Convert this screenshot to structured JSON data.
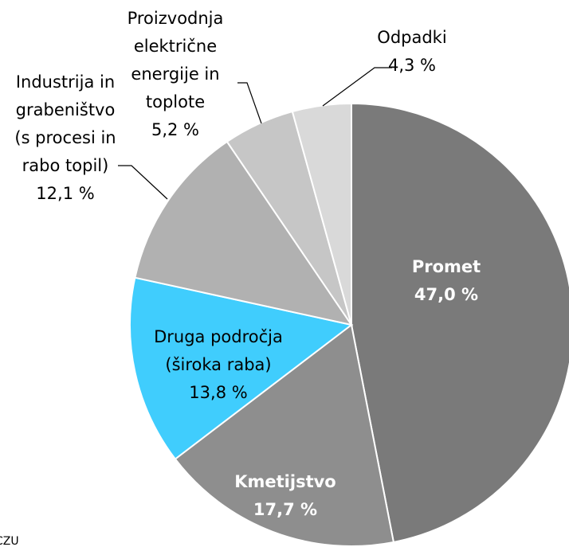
{
  "chart_data": {
    "type": "pie",
    "categories": [
      [
        "Promet"
      ],
      [
        "Kmetijstvo"
      ],
      [
        "Druga področja",
        "(široka raba)"
      ],
      [
        "Industrija in",
        "grabeništvo",
        "(s procesi in",
        "rabo topil)"
      ],
      [
        "Proizvodnja",
        "električne",
        "energije in",
        "toplote"
      ],
      [
        "Odpadki"
      ]
    ],
    "values": [
      47.0,
      17.7,
      13.8,
      12.1,
      5.2,
      4.3
    ],
    "value_labels": [
      "47,0 %",
      "17,7 %",
      "13,8 %",
      "12,1 %",
      "5,2 %",
      "4,3 %"
    ],
    "colors": [
      "#7a7a7a",
      "#8e8e8e",
      "#40cdfd",
      "#b1b1b1",
      "#c6c6c6",
      "#d9d9d9"
    ],
    "source": "CZU"
  }
}
